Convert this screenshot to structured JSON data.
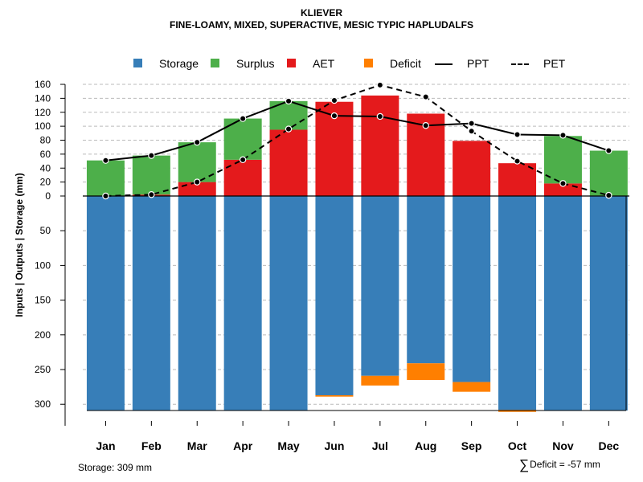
{
  "title": "KLIEVER",
  "subtitle": "FINE-LOAMY, MIXED, SUPERACTIVE, MESIC TYPIC HAPLUDALFS",
  "legend": {
    "storage": "Storage",
    "surplus": "Surplus",
    "aet": "AET",
    "deficit": "Deficit",
    "ppt": "PPT",
    "pet": "PET"
  },
  "colors": {
    "storage": "#377eb8",
    "surplus": "#4daf4a",
    "aet": "#e41a1c",
    "deficit": "#ff7f00",
    "line": "#000000",
    "grid": "#bbbbbb"
  },
  "footer": {
    "storage_note": "Storage: 309 mm",
    "deficit_sigma": "∑",
    "deficit_note": "Deficit = -57 mm"
  },
  "chart_data": {
    "type": "bar",
    "ylabel": "Inputs | Outputs | Storage     (mm)",
    "categories": [
      "Jan",
      "Feb",
      "Mar",
      "Apr",
      "May",
      "Jun",
      "Jul",
      "Aug",
      "Sep",
      "Oct",
      "Nov",
      "Dec"
    ],
    "upper_axis": {
      "range": [
        0,
        160
      ],
      "ticks": [
        0,
        20,
        40,
        60,
        80,
        100,
        120,
        140,
        160
      ]
    },
    "lower_axis": {
      "range": [
        0,
        309
      ],
      "ticks": [
        50,
        100,
        150,
        200,
        250,
        300
      ]
    },
    "series": [
      {
        "name": "AET",
        "values": [
          0,
          2,
          20,
          52,
          95,
          135,
          144,
          118,
          79,
          47,
          18,
          0
        ]
      },
      {
        "name": "Surplus",
        "values": [
          51,
          56,
          57,
          59,
          41,
          0,
          0,
          0,
          0,
          0,
          68,
          65
        ]
      },
      {
        "name": "Storage",
        "values": [
          309,
          309,
          309,
          309,
          309,
          287,
          259,
          241,
          268,
          308,
          309,
          309
        ]
      },
      {
        "name": "Deficit",
        "values": [
          0,
          0,
          0,
          0,
          0,
          2,
          14,
          24,
          14,
          3,
          0,
          0
        ]
      },
      {
        "name": "PPT",
        "values": [
          51,
          58,
          77,
          111,
          136,
          115,
          114,
          101,
          104,
          88,
          87,
          65
        ]
      },
      {
        "name": "PET",
        "values": [
          0,
          2,
          20,
          52,
          96,
          137,
          159,
          142,
          93,
          50,
          18,
          1
        ]
      }
    ]
  }
}
